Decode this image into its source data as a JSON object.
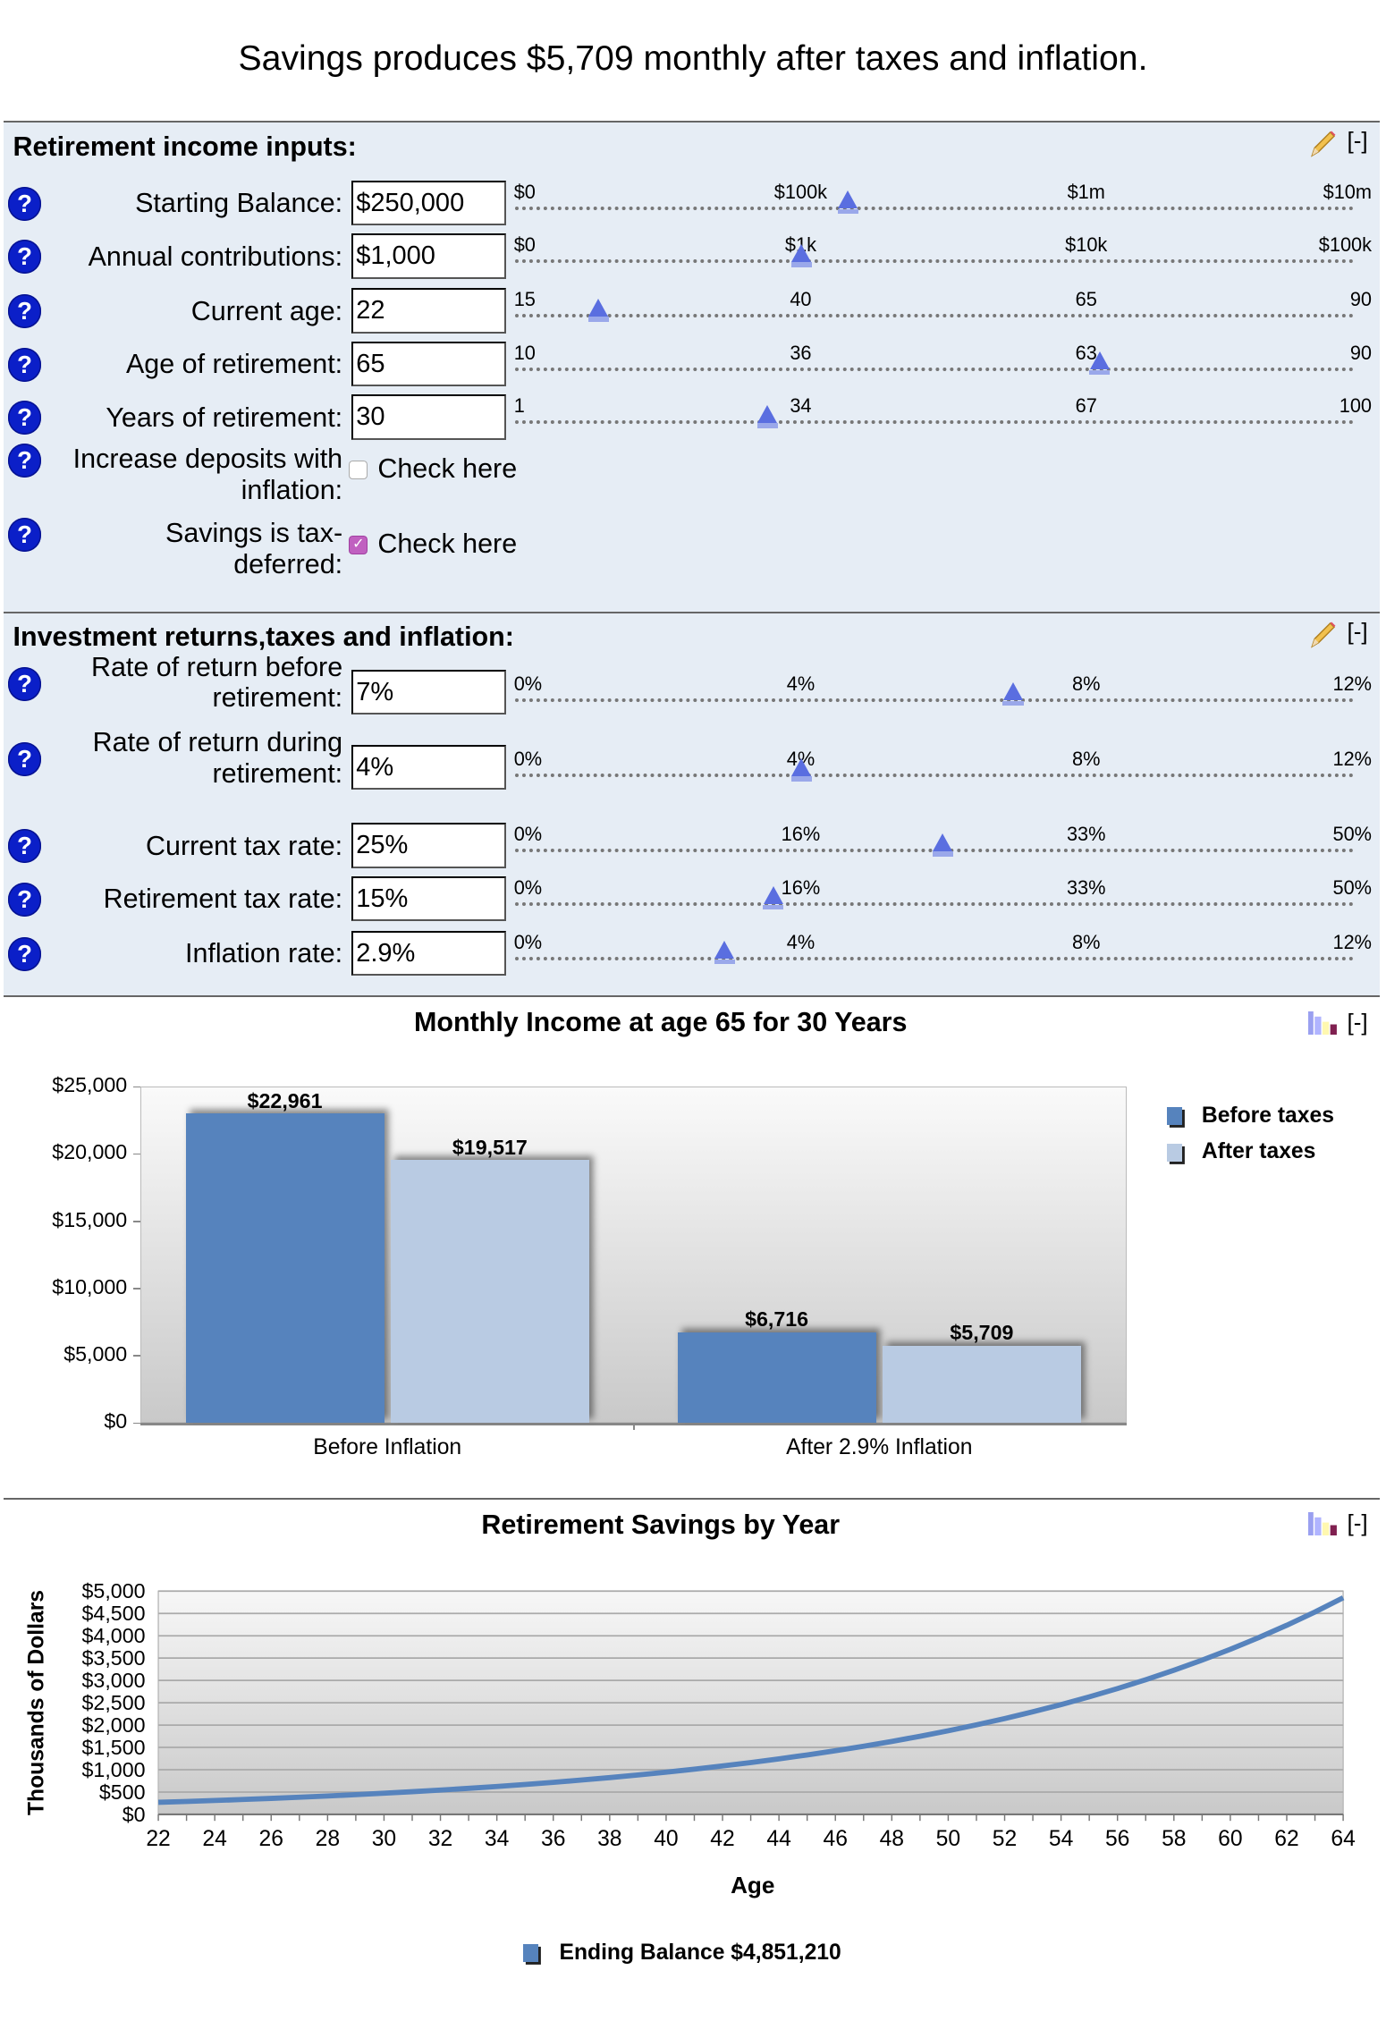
{
  "headline": "Savings produces $5,709 monthly after taxes and inflation.",
  "sections": [
    {
      "title": "Retirement income inputs:",
      "collapse_label": "[-]",
      "rows": [
        {
          "label": [
            "Starting Balance:"
          ],
          "value": "$250,000",
          "ticks": [
            "$0",
            "$100k",
            "$1m",
            "$10m"
          ],
          "level": 0.389
        },
        {
          "label": [
            "Annual contributions:"
          ],
          "value": "$1,000",
          "ticks": [
            "$0",
            "$1k",
            "$10k",
            "$100k"
          ],
          "level": 0.335
        },
        {
          "label": [
            "Current age:"
          ],
          "value": "22",
          "ticks": [
            "15",
            "40",
            "65",
            "90"
          ],
          "level": 0.098
        },
        {
          "label": [
            "Age of retirement:"
          ],
          "value": "65",
          "ticks": [
            "10",
            "36",
            "63",
            "90"
          ],
          "level": 0.683
        },
        {
          "label": [
            "Years of retirement:"
          ],
          "value": "30",
          "ticks": [
            "1",
            "34",
            "67",
            "100"
          ],
          "level": 0.295
        }
      ],
      "checkboxes": [
        {
          "label": [
            "Increase deposits with",
            "inflation:"
          ],
          "text": "Check here",
          "checked": false
        },
        {
          "label": [
            "Savings is tax-",
            "deferred:"
          ],
          "text": "Check here",
          "checked": true
        }
      ]
    },
    {
      "title": "Investment returns,taxes and inflation:",
      "collapse_label": "[-]",
      "rows": [
        {
          "label": [
            "Rate of return before",
            "retirement:"
          ],
          "value": "7%",
          "ticks": [
            "0%",
            "4%",
            "8%",
            "12%"
          ],
          "level": 0.582
        },
        {
          "label": [
            "Rate of return during",
            "retirement:"
          ],
          "value": "4%",
          "ticks": [
            "0%",
            "4%",
            "8%",
            "12%"
          ],
          "level": 0.335
        },
        {
          "label": [
            "Current tax rate:"
          ],
          "value": "25%",
          "ticks": [
            "0%",
            "16%",
            "33%",
            "50%"
          ],
          "level": 0.5
        },
        {
          "label": [
            "Retirement tax rate:"
          ],
          "value": "15%",
          "ticks": [
            "0%",
            "16%",
            "33%",
            "50%"
          ],
          "level": 0.302
        },
        {
          "label": [
            "Inflation rate:"
          ],
          "value": "2.9%",
          "ticks": [
            "0%",
            "4%",
            "8%",
            "12%"
          ],
          "level": 0.245
        }
      ]
    }
  ],
  "help_glyph": "?",
  "colors": {
    "series1": "#5683bd",
    "series2": "#b9cbe3",
    "thumb": "#5a6ee0",
    "help": "#0b1fc8",
    "panel": "#e6edf5"
  },
  "chart_data": [
    {
      "type": "bar",
      "title": "Monthly Income at age 65 for 30 Years",
      "collapse_label": "[-]",
      "categories": [
        "Before Inflation",
        "After 2.9% Inflation"
      ],
      "series": [
        {
          "name": "Before taxes",
          "values": [
            22961,
            6716
          ],
          "labels": [
            "$22,961",
            "$6,716"
          ]
        },
        {
          "name": "After taxes",
          "values": [
            19517,
            5709
          ],
          "labels": [
            "$19,517",
            "$5,709"
          ]
        }
      ],
      "ylim": [
        0,
        25000
      ],
      "yticks": [
        "$0",
        "$5,000",
        "$10,000",
        "$15,000",
        "$20,000",
        "$25,000"
      ],
      "legend": "right"
    },
    {
      "type": "line",
      "title": "Retirement Savings by Year",
      "collapse_label": "[-]",
      "xlabel": "Age",
      "ylabel": "Thousands of Dollars",
      "xlim": [
        22,
        64
      ],
      "ylim": [
        0,
        5000
      ],
      "xticks": [
        "22",
        "24",
        "26",
        "28",
        "30",
        "32",
        "34",
        "36",
        "38",
        "40",
        "42",
        "44",
        "46",
        "48",
        "50",
        "52",
        "54",
        "56",
        "58",
        "60",
        "62",
        "64"
      ],
      "yticks": [
        "$0",
        "$500",
        "$1,000",
        "$1,500",
        "$2,000",
        "$2,500",
        "$3,000",
        "$3,500",
        "$4,000",
        "$4,500",
        "$5,000"
      ],
      "grid": true,
      "legend": "bottom",
      "series": [
        {
          "name": "Ending Balance $4,851,210",
          "x": [
            22,
            23,
            24,
            25,
            26,
            27,
            28,
            29,
            30,
            31,
            32,
            33,
            34,
            35,
            36,
            37,
            38,
            39,
            40,
            41,
            42,
            43,
            44,
            45,
            46,
            47,
            48,
            49,
            50,
            51,
            52,
            53,
            54,
            55,
            56,
            57,
            58,
            59,
            60,
            61,
            62,
            63,
            64
          ],
          "y": [
            269.5,
            289.4,
            310.6,
            333.4,
            357.7,
            383.8,
            411.6,
            441.5,
            473.3,
            507.5,
            544.0,
            583.1,
            624.9,
            669.6,
            717.5,
            768.8,
            823.5,
            882.2,
            945.0,
            1012.1,
            1084.0,
            1160.9,
            1243.1,
            1331.1,
            1425.3,
            1526.1,
            1633.9,
            1749.2,
            1872.7,
            2004.8,
            2146.1,
            2297.3,
            2459.2,
            2632.3,
            2817.5,
            3015.8,
            3227.9,
            3454.9,
            3697.7,
            3957.6,
            4235.6,
            4533.1,
            4851.3
          ]
        }
      ]
    }
  ]
}
